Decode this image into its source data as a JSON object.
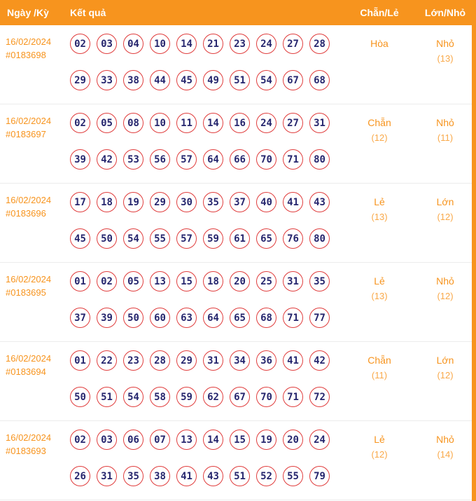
{
  "colors": {
    "accent": "#f7941e",
    "ball_border": "#e03e3e",
    "number_text": "#26266e",
    "header_text": "#ffffff"
  },
  "header": {
    "col_date": "Ngày /Kỳ",
    "col_result": "Kết quả",
    "col_evenodd": "Chẵn/Lẻ",
    "col_bigsmall": "Lớn/Nhỏ"
  },
  "rows": [
    {
      "date": "16/02/2024",
      "id": "#0183698",
      "line1": [
        "02",
        "03",
        "04",
        "10",
        "14",
        "21",
        "23",
        "24",
        "27",
        "28"
      ],
      "line2": [
        "29",
        "33",
        "38",
        "44",
        "45",
        "49",
        "51",
        "54",
        "67",
        "68"
      ],
      "evenodd": "Hòa",
      "evenodd_count": "",
      "bigsmall": "Nhỏ",
      "bigsmall_count": "(13)"
    },
    {
      "date": "16/02/2024",
      "id": "#0183697",
      "line1": [
        "02",
        "05",
        "08",
        "10",
        "11",
        "14",
        "16",
        "24",
        "27",
        "31"
      ],
      "line2": [
        "39",
        "42",
        "53",
        "56",
        "57",
        "64",
        "66",
        "70",
        "71",
        "80"
      ],
      "evenodd": "Chẵn",
      "evenodd_count": "(12)",
      "bigsmall": "Nhỏ",
      "bigsmall_count": "(11)"
    },
    {
      "date": "16/02/2024",
      "id": "#0183696",
      "line1": [
        "17",
        "18",
        "19",
        "29",
        "30",
        "35",
        "37",
        "40",
        "41",
        "43"
      ],
      "line2": [
        "45",
        "50",
        "54",
        "55",
        "57",
        "59",
        "61",
        "65",
        "76",
        "80"
      ],
      "evenodd": "Lẻ",
      "evenodd_count": "(13)",
      "bigsmall": "Lớn",
      "bigsmall_count": "(12)"
    },
    {
      "date": "16/02/2024",
      "id": "#0183695",
      "line1": [
        "01",
        "02",
        "05",
        "13",
        "15",
        "18",
        "20",
        "25",
        "31",
        "35"
      ],
      "line2": [
        "37",
        "39",
        "50",
        "60",
        "63",
        "64",
        "65",
        "68",
        "71",
        "77"
      ],
      "evenodd": "Lẻ",
      "evenodd_count": "(13)",
      "bigsmall": "Nhỏ",
      "bigsmall_count": "(12)"
    },
    {
      "date": "16/02/2024",
      "id": "#0183694",
      "line1": [
        "01",
        "22",
        "23",
        "28",
        "29",
        "31",
        "34",
        "36",
        "41",
        "42"
      ],
      "line2": [
        "50",
        "51",
        "54",
        "58",
        "59",
        "62",
        "67",
        "70",
        "71",
        "72"
      ],
      "evenodd": "Chẵn",
      "evenodd_count": "(11)",
      "bigsmall": "Lớn",
      "bigsmall_count": "(12)"
    },
    {
      "date": "16/02/2024",
      "id": "#0183693",
      "line1": [
        "02",
        "03",
        "06",
        "07",
        "13",
        "14",
        "15",
        "19",
        "20",
        "24"
      ],
      "line2": [
        "26",
        "31",
        "35",
        "38",
        "41",
        "43",
        "51",
        "52",
        "55",
        "79"
      ],
      "evenodd": "Lẻ",
      "evenodd_count": "(12)",
      "bigsmall": "Nhỏ",
      "bigsmall_count": "(14)"
    }
  ]
}
